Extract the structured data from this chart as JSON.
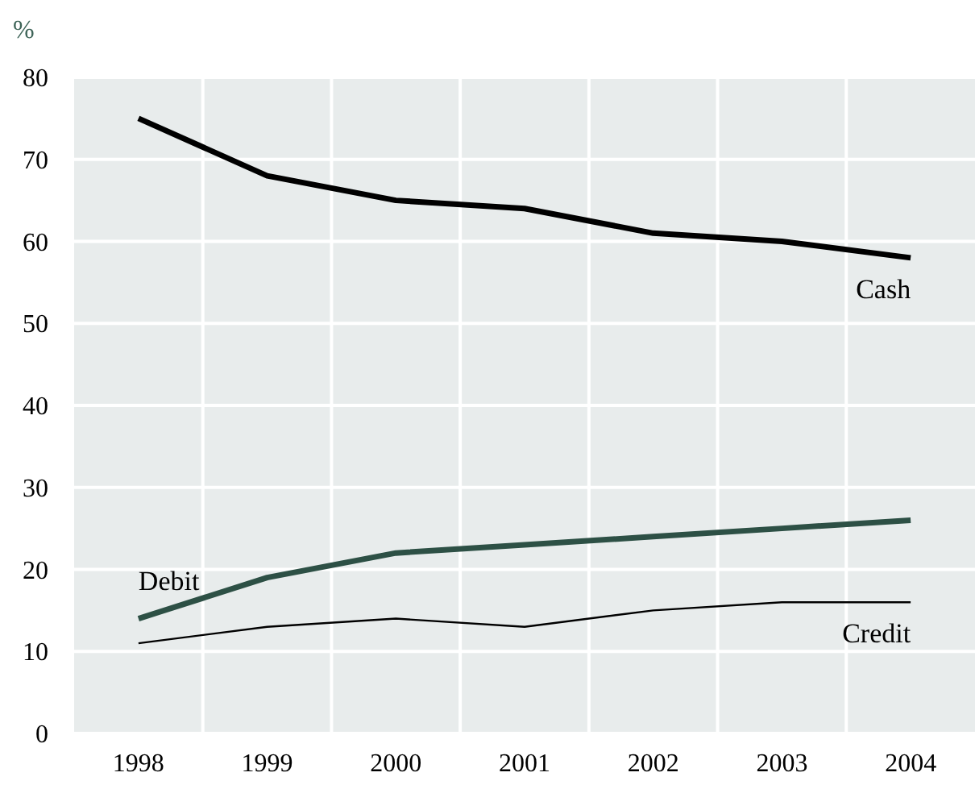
{
  "chart_data": {
    "type": "line",
    "ylabel": "%",
    "categories": [
      "1998",
      "1999",
      "2000",
      "2001",
      "2002",
      "2003",
      "2004"
    ],
    "series": [
      {
        "name": "Cash",
        "color": "#000000",
        "values": [
          75,
          68,
          65,
          64,
          61,
          60,
          58
        ]
      },
      {
        "name": "Debit",
        "color": "#2d5045",
        "values": [
          14,
          19,
          22,
          23,
          24,
          25,
          26
        ]
      },
      {
        "name": "Credit",
        "color": "#000000",
        "values": [
          11,
          13,
          14,
          13,
          15,
          16,
          16
        ]
      }
    ],
    "ylim": [
      0,
      80
    ],
    "yticks": [
      0,
      10,
      20,
      30,
      40,
      50,
      60,
      70,
      80
    ],
    "grid": true,
    "marker": "none",
    "line_style": "solid"
  }
}
